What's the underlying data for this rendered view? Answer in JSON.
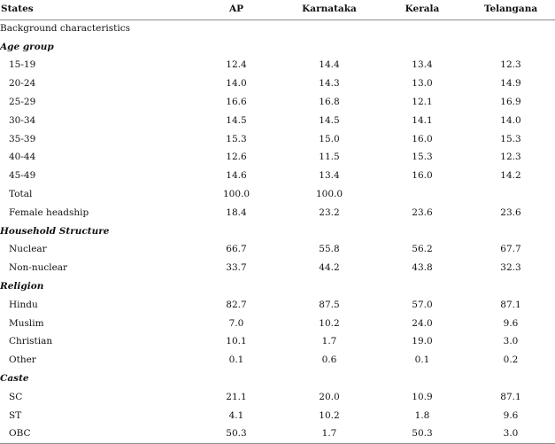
{
  "table": {
    "headers": [
      "States",
      "AP",
      "Karnataka",
      "Kerala",
      "Telangana"
    ],
    "rows": [
      {
        "type": "subhead",
        "label": "Background characteristics",
        "values": [
          "",
          "",
          "",
          ""
        ]
      },
      {
        "type": "section",
        "label": "Age group",
        "values": [
          "",
          "",
          "",
          ""
        ]
      },
      {
        "type": "item",
        "label": "15-19",
        "values": [
          "12.4",
          "14.4",
          "13.4",
          "12.3"
        ]
      },
      {
        "type": "item",
        "label": "20-24",
        "values": [
          "14.0",
          "14.3",
          "13.0",
          "14.9"
        ]
      },
      {
        "type": "item",
        "label": "25-29",
        "values": [
          "16.6",
          "16.8",
          "12.1",
          "16.9"
        ]
      },
      {
        "type": "item",
        "label": "30-34",
        "values": [
          "14.5",
          "14.5",
          "14.1",
          "14.0"
        ]
      },
      {
        "type": "item",
        "label": "35-39",
        "values": [
          "15.3",
          "15.0",
          "16.0",
          "15.3"
        ]
      },
      {
        "type": "item",
        "label": "40-44",
        "values": [
          "12.6",
          "11.5",
          "15.3",
          "12.3"
        ]
      },
      {
        "type": "item",
        "label": "45-49",
        "values": [
          "14.6",
          "13.4",
          "16.0",
          "14.2"
        ]
      },
      {
        "type": "item",
        "label": "Total",
        "values": [
          "100.0",
          "100.0",
          "",
          ""
        ]
      },
      {
        "type": "item",
        "label": "Female headship",
        "values": [
          "18.4",
          "23.2",
          "23.6",
          "23.6"
        ]
      },
      {
        "type": "section",
        "label": "Household Structure",
        "values": [
          "",
          "",
          "",
          ""
        ]
      },
      {
        "type": "item",
        "label": "Nuclear",
        "values": [
          "66.7",
          "55.8",
          "56.2",
          "67.7"
        ]
      },
      {
        "type": "item",
        "label": "Non-nuclear",
        "values": [
          "33.7",
          "44.2",
          "43.8",
          "32.3"
        ]
      },
      {
        "type": "section",
        "label": "Religion",
        "values": [
          "",
          "",
          "",
          ""
        ]
      },
      {
        "type": "item",
        "label": "Hindu",
        "values": [
          "82.7",
          "87.5",
          "57.0",
          "87.1"
        ]
      },
      {
        "type": "item",
        "label": "Muslim",
        "values": [
          "7.0",
          "10.2",
          "24.0",
          "9.6"
        ]
      },
      {
        "type": "item",
        "label": "Christian",
        "values": [
          "10.1",
          "1.7",
          "19.0",
          "3.0"
        ]
      },
      {
        "type": "item",
        "label": "Other",
        "values": [
          "0.1",
          "0.6",
          "0.1",
          "0.2"
        ]
      },
      {
        "type": "section",
        "label": "Caste",
        "values": [
          "",
          "",
          "",
          ""
        ]
      },
      {
        "type": "item",
        "label": "SC",
        "values": [
          "21.1",
          "20.0",
          "10.9",
          "87.1"
        ]
      },
      {
        "type": "item",
        "label": "ST",
        "values": [
          "4.1",
          "10.2",
          "1.8",
          "9.6"
        ]
      },
      {
        "type": "item",
        "label": "OBC",
        "values": [
          "50.3",
          "1.7",
          "50.3",
          "3.0"
        ]
      }
    ]
  }
}
